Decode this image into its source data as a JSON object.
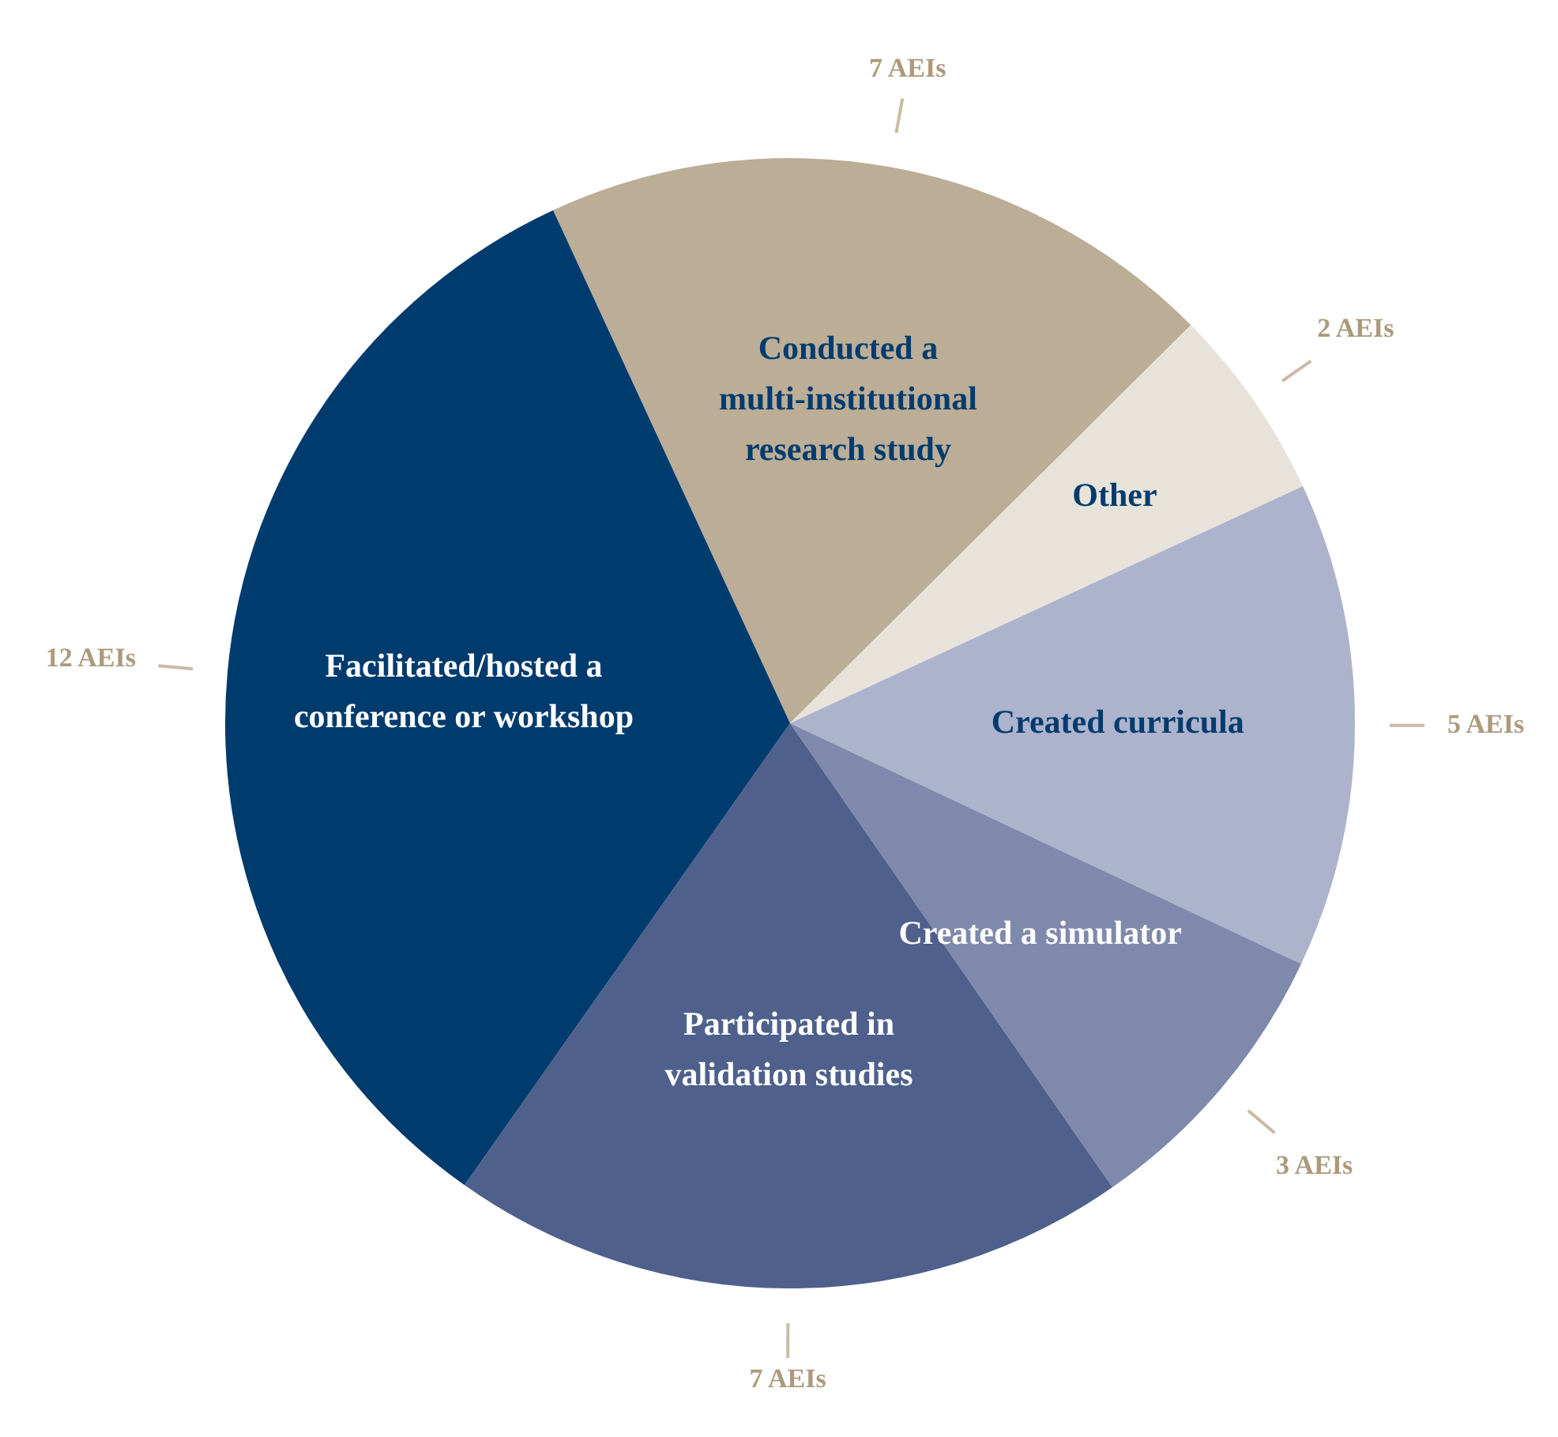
{
  "chart_data": {
    "type": "pie",
    "categories": [
      "Conducted a multi-institutional research study",
      "Other",
      "Created curricula",
      "Created a simulator",
      "Participated in validation studies",
      "Facilitated/hosted a conference or workshop"
    ],
    "values": [
      7,
      2,
      5,
      3,
      7,
      12
    ],
    "colors": [
      "#bbad96",
      "#e8e3da",
      "#adb3cc",
      "#7f89ab",
      "#4e608b",
      "#003b6e"
    ],
    "value_labels": [
      "7 AEIs",
      "2 AEIs",
      "5 AEIs",
      "3 AEIs",
      "7 AEIs",
      "12 AEIs"
    ],
    "legend": false
  }
}
